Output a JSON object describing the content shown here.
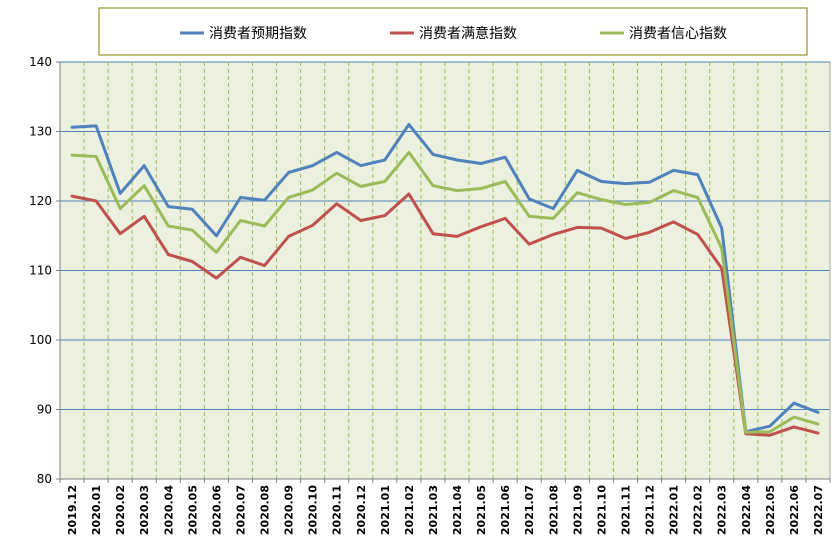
{
  "chart_data": {
    "type": "line",
    "title": "",
    "xlabel": "",
    "ylabel": "",
    "ylim": [
      80,
      140
    ],
    "yticks": [
      80,
      90,
      100,
      110,
      120,
      130,
      140
    ],
    "grid": true,
    "legend_position": "top",
    "categories": [
      "2019.12",
      "2020.01",
      "2020.02",
      "2020.03",
      "2020.04",
      "2020.05",
      "2020.06",
      "2020.07",
      "2020.08",
      "2020.09",
      "2020.10",
      "2020.11",
      "2020.12",
      "2021.01",
      "2021.02",
      "2021.03",
      "2021.04",
      "2021.05",
      "2021.06",
      "2021.07",
      "2021.08",
      "2021.09",
      "2021.10",
      "2021.11",
      "2021.12",
      "2022.01",
      "2022.02",
      "2022.03",
      "2022.04",
      "2022.05",
      "2022.06",
      "2022.07"
    ],
    "series": [
      {
        "name": "消费者预期指数",
        "color": "#4f81bd",
        "values": [
          130.6,
          130.8,
          121.1,
          125.1,
          119.2,
          118.8,
          115.0,
          120.5,
          120.1,
          124.1,
          125.1,
          127.0,
          125.1,
          125.9,
          131.0,
          126.7,
          125.9,
          125.4,
          126.3,
          120.3,
          118.9,
          124.4,
          122.8,
          122.5,
          122.7,
          124.4,
          123.8,
          116.1,
          86.8,
          87.6,
          90.9,
          89.6
        ]
      },
      {
        "name": "消费者满意指数",
        "color": "#c0504d",
        "values": [
          120.7,
          120.0,
          115.3,
          117.8,
          112.3,
          111.3,
          108.9,
          111.9,
          110.7,
          114.9,
          116.5,
          119.6,
          117.2,
          117.9,
          121.0,
          115.3,
          114.9,
          116.3,
          117.5,
          113.8,
          115.2,
          116.2,
          116.1,
          114.6,
          115.5,
          117.0,
          115.2,
          110.3,
          86.5,
          86.3,
          87.5,
          86.6
        ]
      },
      {
        "name": "消费者信心指数",
        "color": "#9bbb59",
        "values": [
          126.6,
          126.4,
          118.9,
          122.2,
          116.4,
          115.8,
          112.6,
          117.2,
          116.4,
          120.5,
          121.6,
          124.0,
          122.1,
          122.8,
          127.0,
          122.2,
          121.5,
          121.8,
          122.8,
          117.8,
          117.5,
          121.2,
          120.2,
          119.5,
          119.8,
          121.5,
          120.5,
          113.2,
          86.7,
          86.8,
          88.9,
          87.9
        ]
      }
    ]
  }
}
